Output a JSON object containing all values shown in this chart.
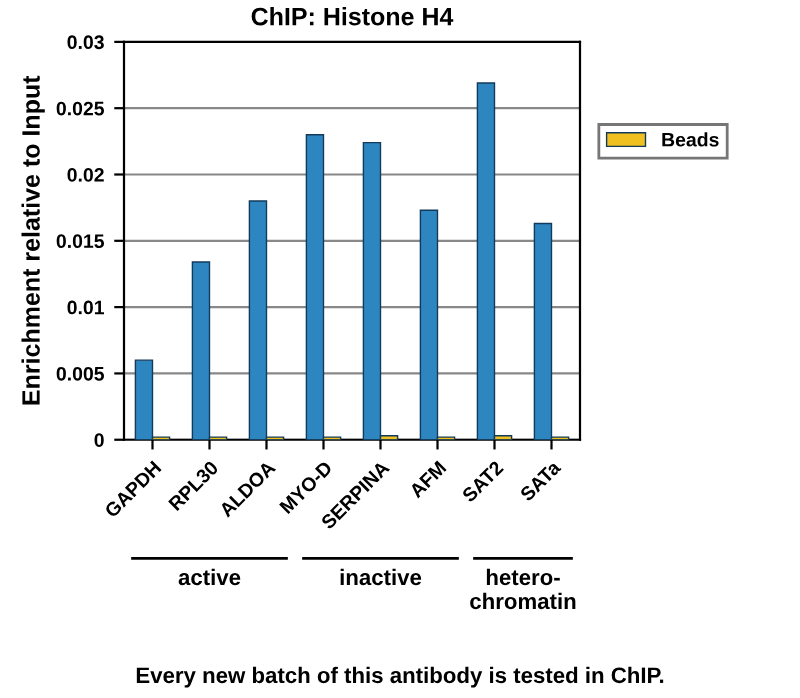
{
  "chart_data": {
    "type": "bar",
    "title": "ChIP: Histone H4",
    "ylabel": "Enrichment relative to Input",
    "categories": [
      "GAPDH",
      "RPL30",
      "ALDOA",
      "MYO-D",
      "SERPINA",
      "AFM",
      "SAT2",
      "SATa"
    ],
    "series": [
      {
        "color": "#2e86c1",
        "values": [
          0.006,
          0.0134,
          0.018,
          0.023,
          0.0224,
          0.0173,
          0.0269,
          0.0163
        ]
      },
      {
        "name": "Beads",
        "color": "#f0c020",
        "values": [
          0.0002,
          0.0002,
          0.0002,
          0.0002,
          0.0003,
          0.0002,
          0.0003,
          0.0002
        ]
      }
    ],
    "ylim": [
      0,
      0.03
    ],
    "yticks": [
      0,
      0.005,
      0.01,
      0.015,
      0.02,
      0.025,
      0.03
    ],
    "grid": "y",
    "legend": "right",
    "annotations": [
      "active",
      "inactive",
      "hetero-\nchromatin",
      "Every new batch of this antibody is tested in ChIP."
    ]
  }
}
